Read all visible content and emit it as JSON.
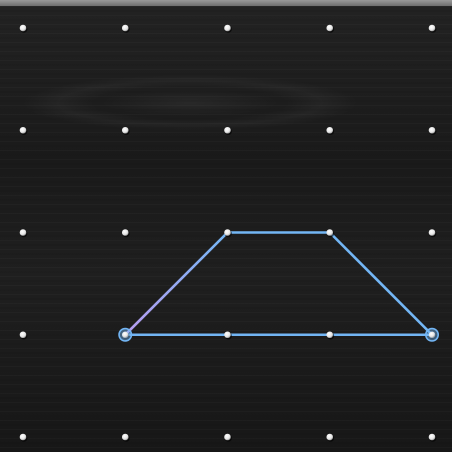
{
  "board": {
    "grid_columns": 5,
    "grid_rows": 5,
    "peg_color": "#f2f2f2",
    "background_color": "#1b1b1b"
  },
  "band": {
    "vertex_pegs": [
      {
        "col": 1,
        "row": 3
      },
      {
        "col": 2,
        "row": 2
      },
      {
        "col": 3,
        "row": 2
      },
      {
        "col": 4,
        "row": 3
      }
    ],
    "color": "#73b6f5",
    "accent_color": "#b79cf0",
    "selected_handle_pegs": [
      {
        "col": 1,
        "row": 3
      },
      {
        "col": 4,
        "row": 3
      }
    ]
  }
}
